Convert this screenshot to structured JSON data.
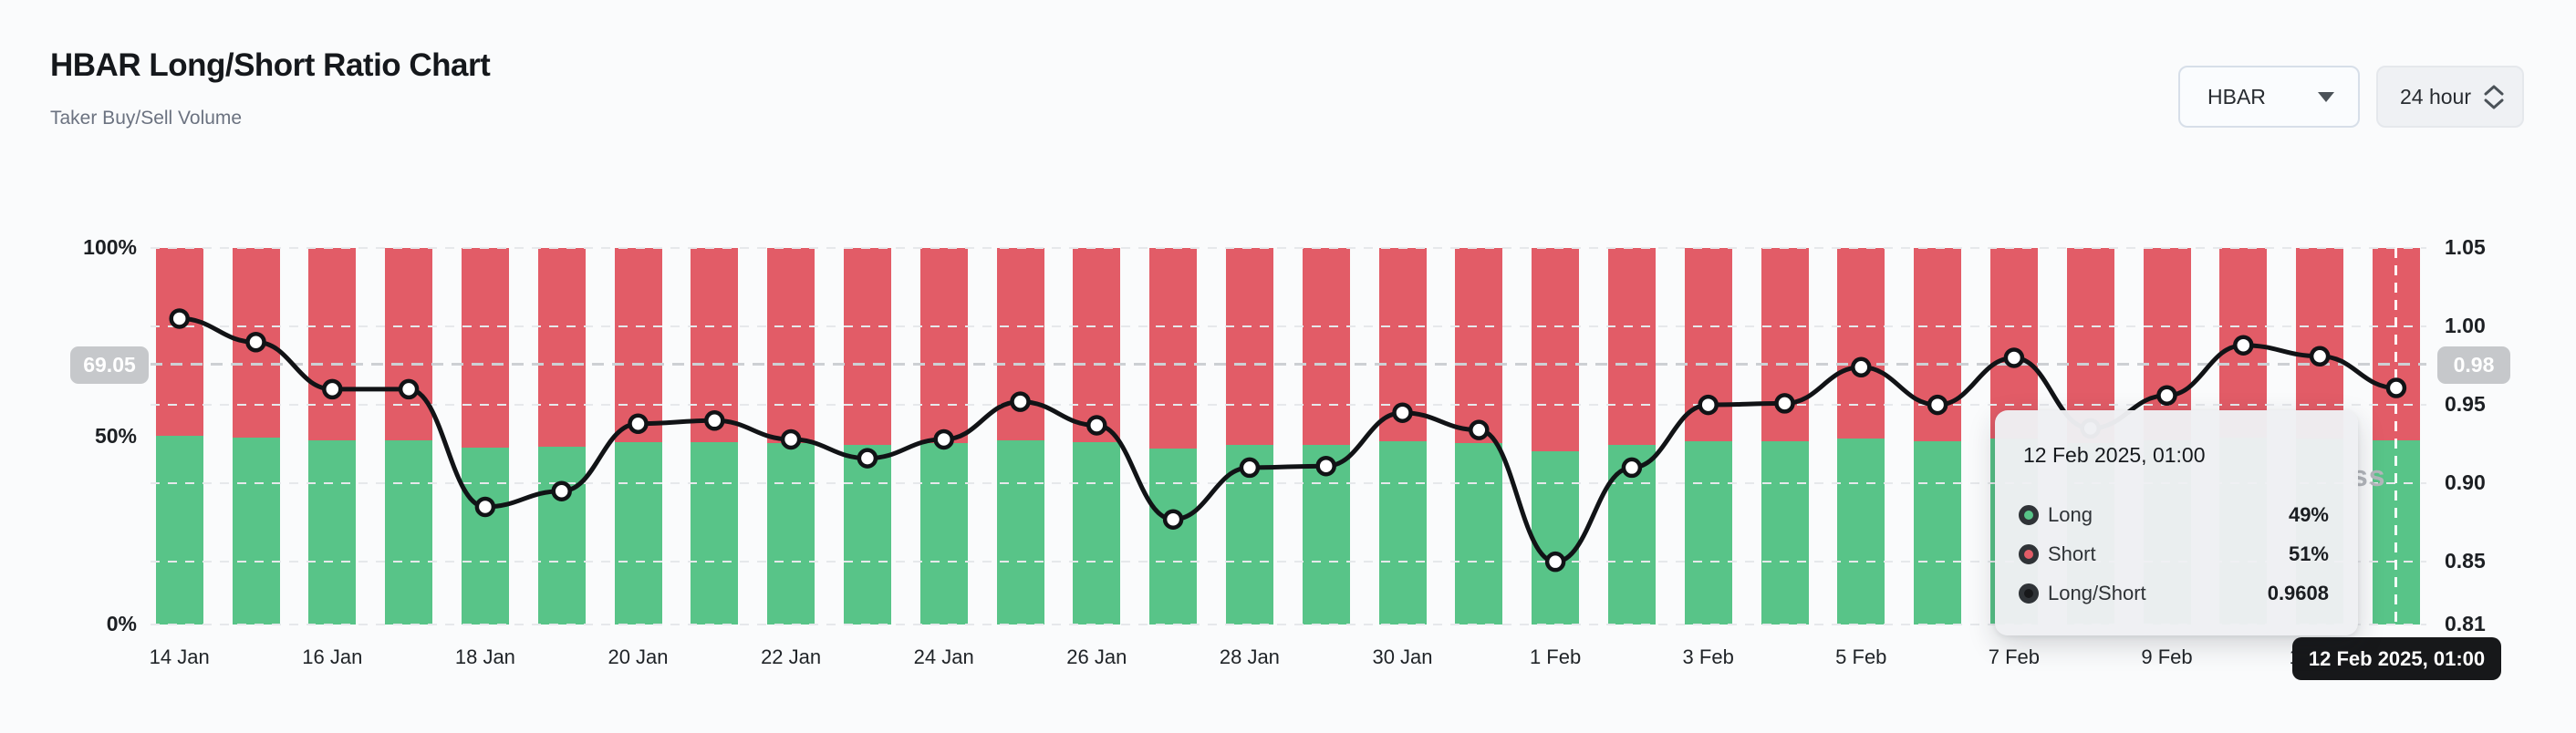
{
  "header": {
    "title": "HBAR Long/Short Ratio Chart",
    "subtitle": "Taker Buy/Sell Volume"
  },
  "controls": {
    "symbol_select": {
      "value": "HBAR"
    },
    "interval_select": {
      "value": "24 hour"
    }
  },
  "colors": {
    "long_green": "#58c488",
    "short_red": "#e25c67",
    "ratio_line": "#111316",
    "axis_pill_bg": "#c6c8cb",
    "crosshair_pill_bg": "#17181a",
    "tooltip_bg": "#eef0f3"
  },
  "watermark": "ss",
  "chart_data": {
    "type": "bar",
    "subtype": "stacked-bars-with-line",
    "title": "HBAR Long/Short Ratio Chart",
    "categories": [
      "14 Jan",
      "15 Jan",
      "16 Jan",
      "17 Jan",
      "18 Jan",
      "19 Jan",
      "20 Jan",
      "21 Jan",
      "22 Jan",
      "23 Jan",
      "24 Jan",
      "25 Jan",
      "26 Jan",
      "27 Jan",
      "28 Jan",
      "29 Jan",
      "30 Jan",
      "31 Jan",
      "1 Feb",
      "2 Feb",
      "3 Feb",
      "4 Feb",
      "5 Feb",
      "6 Feb",
      "7 Feb",
      "8 Feb",
      "9 Feb",
      "10 Feb",
      "11 Feb",
      "12 Feb"
    ],
    "series": [
      {
        "name": "Long",
        "unit": "%",
        "axis": "left",
        "values": [
          50.1,
          49.7,
          49.0,
          49.0,
          46.9,
          47.2,
          48.4,
          48.5,
          48.1,
          47.8,
          48.1,
          48.8,
          48.4,
          46.7,
          47.6,
          47.7,
          48.6,
          48.3,
          45.9,
          47.6,
          48.7,
          48.7,
          49.3,
          48.7,
          49.5,
          48.3,
          48.9,
          49.7,
          49.5,
          49.0
        ]
      },
      {
        "name": "Short",
        "unit": "%",
        "axis": "left",
        "values": [
          49.9,
          50.3,
          51.0,
          51.0,
          53.1,
          52.8,
          51.6,
          51.5,
          51.9,
          52.2,
          51.9,
          51.2,
          51.6,
          53.3,
          52.4,
          52.3,
          51.4,
          51.7,
          54.1,
          52.4,
          51.3,
          51.3,
          50.7,
          51.3,
          50.5,
          51.7,
          51.1,
          50.3,
          50.5,
          51.0
        ]
      },
      {
        "name": "Long/Short",
        "axis": "right",
        "values": [
          1.005,
          0.99,
          0.96,
          0.96,
          0.885,
          0.895,
          0.938,
          0.94,
          0.928,
          0.916,
          0.928,
          0.952,
          0.937,
          0.877,
          0.91,
          0.911,
          0.945,
          0.934,
          0.85,
          0.91,
          0.95,
          0.951,
          0.974,
          0.95,
          0.98,
          0.935,
          0.956,
          0.988,
          0.981,
          0.9608
        ]
      }
    ],
    "left_axis": {
      "ticks": [
        {
          "label": "100%",
          "value": 100
        },
        {
          "label": "50%",
          "value": 50
        },
        {
          "label": "0%",
          "value": 0
        }
      ],
      "range": [
        0,
        100
      ]
    },
    "right_axis": {
      "ticks": [
        {
          "label": "1.05",
          "value": 1.05
        },
        {
          "label": "1.00",
          "value": 1.0
        },
        {
          "label": "0.95",
          "value": 0.95
        },
        {
          "label": "0.90",
          "value": 0.9
        },
        {
          "label": "0.85",
          "value": 0.85
        },
        {
          "label": "0.81",
          "value": 0.81
        }
      ],
      "range": [
        0.81,
        1.05
      ]
    },
    "reference_line": {
      "left_label": "69.05",
      "right_label": "0.98",
      "left_value": 69.05
    },
    "grid": "horizontal-dashed",
    "legend_position": "tooltip-only",
    "crosshair": {
      "category_index": 29,
      "axis_label": "12 Feb 2025, 01:00"
    },
    "tooltip": {
      "date": "12 Feb 2025, 01:00",
      "rows": [
        {
          "label": "Long",
          "value": "49%"
        },
        {
          "label": "Short",
          "value": "51%"
        },
        {
          "label": "Long/Short",
          "value": "0.9608"
        }
      ]
    }
  }
}
